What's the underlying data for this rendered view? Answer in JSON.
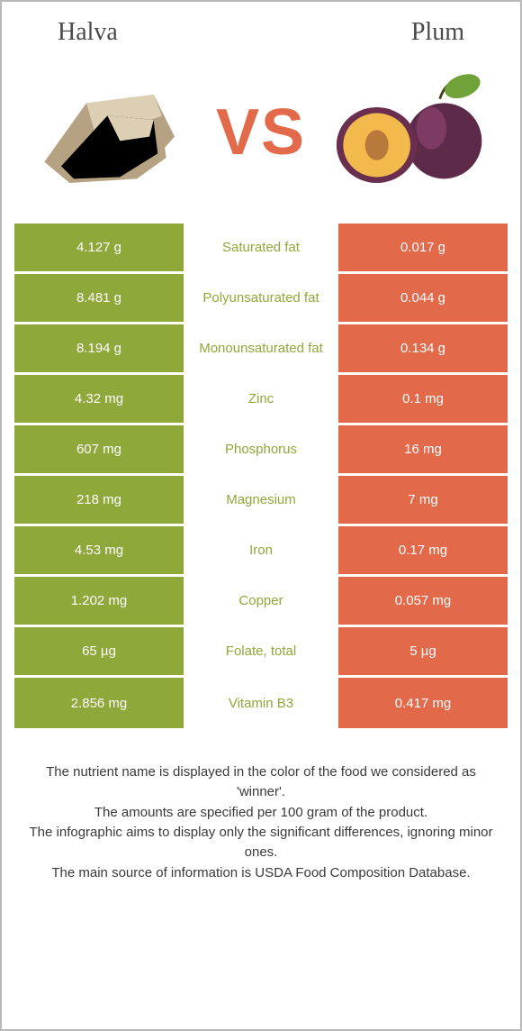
{
  "colors": {
    "halva": "#8fa83a",
    "plum": "#e2694a",
    "text_mid_halva": "#8fa83a",
    "text_mid_plum": "#e2694a",
    "vs": "#e2694a",
    "title_text": "#4a4a4a",
    "note_text": "#3a3a3a"
  },
  "header": {
    "left_title": "Halva",
    "right_title": "Plum",
    "vs_label": "VS"
  },
  "rows": [
    {
      "left": "4.127 g",
      "label": "Saturated fat",
      "right": "0.017 g",
      "winner": "halva"
    },
    {
      "left": "8.481 g",
      "label": "Polyunsaturated fat",
      "right": "0.044 g",
      "winner": "halva"
    },
    {
      "left": "8.194 g",
      "label": "Monounsaturated fat",
      "right": "0.134 g",
      "winner": "halva"
    },
    {
      "left": "4.32 mg",
      "label": "Zinc",
      "right": "0.1 mg",
      "winner": "halva"
    },
    {
      "left": "607 mg",
      "label": "Phosphorus",
      "right": "16 mg",
      "winner": "halva"
    },
    {
      "left": "218 mg",
      "label": "Magnesium",
      "right": "7 mg",
      "winner": "halva"
    },
    {
      "left": "4.53 mg",
      "label": "Iron",
      "right": "0.17 mg",
      "winner": "halva"
    },
    {
      "left": "1.202 mg",
      "label": "Copper",
      "right": "0.057 mg",
      "winner": "halva"
    },
    {
      "left": "65 µg",
      "label": "Folate, total",
      "right": "5 µg",
      "winner": "halva"
    },
    {
      "left": "2.856 mg",
      "label": "Vitamin B3",
      "right": "0.417 mg",
      "winner": "halva"
    }
  ],
  "notes": [
    "The nutrient name is displayed in the color of the food we considered as 'winner'.",
    "The amounts are specified per 100 gram of the product.",
    "The infographic aims to display only the significant differences, ignoring minor ones.",
    "The main source of information is USDA Food Composition Database."
  ]
}
